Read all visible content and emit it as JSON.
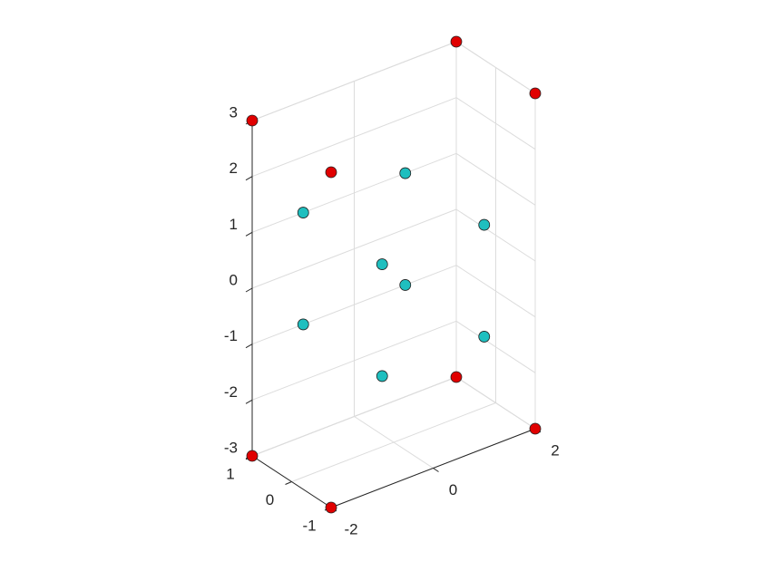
{
  "chart_data": {
    "type": "scatter3d",
    "xlim": [
      -2,
      2
    ],
    "xticks": [
      -2,
      0,
      2
    ],
    "ylim": [
      -1,
      1
    ],
    "yticks": [
      -1,
      0,
      1
    ],
    "zlim": [
      -3,
      3
    ],
    "zticks": [
      -3,
      -2,
      -1,
      0,
      1,
      2,
      3
    ],
    "grid": true,
    "series": [
      {
        "color": "#e00000",
        "x": [
          -2,
          -2,
          -2,
          -2,
          2,
          2,
          2,
          2
        ],
        "y": [
          -1,
          1,
          1,
          -1,
          -1,
          -1,
          1,
          1
        ],
        "z": [
          -3,
          -3,
          3,
          3,
          -3,
          3,
          -3,
          3
        ]
      },
      {
        "color": "#1fbfbf",
        "x": [
          -1,
          -1,
          -1,
          -1,
          1,
          1,
          1,
          1
        ],
        "y": [
          -1,
          -1,
          1,
          1,
          1,
          1,
          -1,
          -1
        ],
        "z": [
          -1,
          1,
          1,
          -1,
          1,
          -1,
          1,
          -1
        ]
      }
    ]
  }
}
